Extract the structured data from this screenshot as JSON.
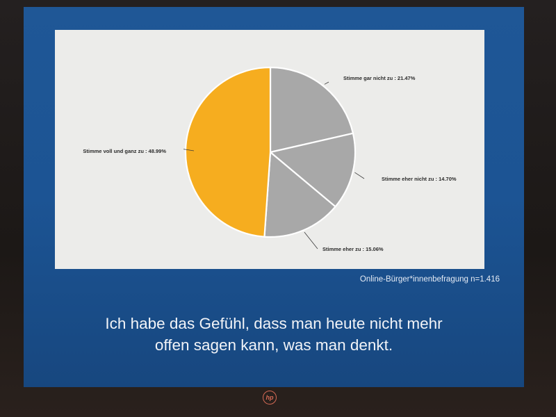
{
  "slide": {
    "source": "Online-Bürger*innenbefragung n=1.416",
    "statement_line1": "Ich habe das Gefühl, dass man heute nicht mehr",
    "statement_line2": "offen sagen kann, was man denkt."
  },
  "monitor": {
    "brand": "hp"
  },
  "chart_data": {
    "type": "pie",
    "title": "",
    "slices": [
      {
        "label": "Stimme gar nicht zu : 21.47%",
        "value": 21.47,
        "color": "#a8a8a8"
      },
      {
        "label": "Stimme eher nicht zu : 14.70%",
        "value": 14.7,
        "color": "#a8a8a8"
      },
      {
        "label": "Stimme eher zu : 15.06%",
        "value": 15.06,
        "color": "#a8a8a8"
      },
      {
        "label": "Stimme voll und ganz zu : 48.99%",
        "value": 48.99,
        "color": "#f6ad1f"
      }
    ],
    "start": "12 o'clock",
    "direction": "clockwise",
    "legend": "none",
    "label_style": "outside labels with leader lines"
  }
}
